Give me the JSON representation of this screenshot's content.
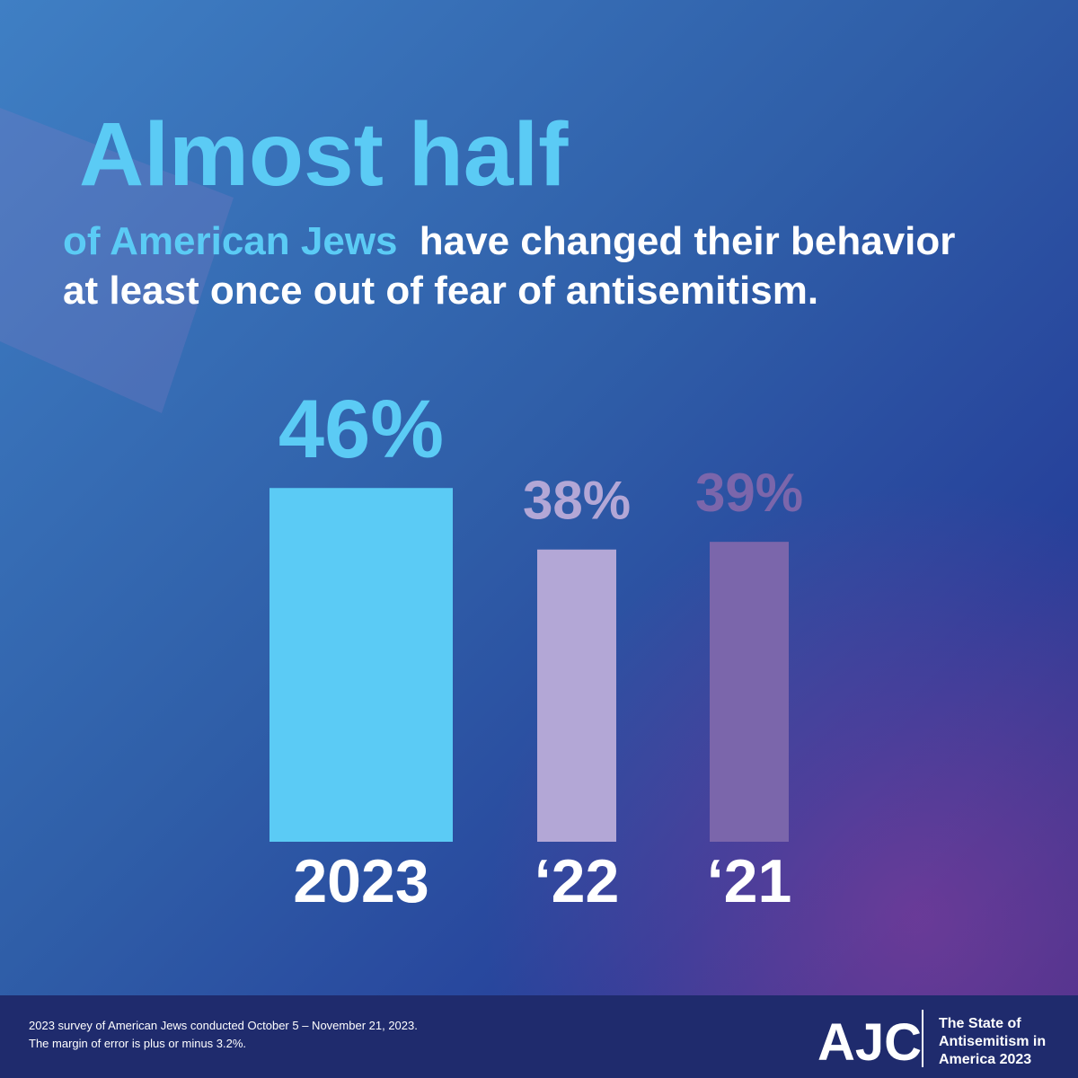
{
  "chart_data": {
    "type": "bar",
    "title": "Almost half",
    "subtitle_highlight": "of American Jews",
    "subtitle_lines": [
      "have changed their behavior",
      "at least once out of fear of antisemitism."
    ],
    "categories": [
      "2023",
      "‘22",
      "‘21"
    ],
    "values": [
      46,
      38,
      39
    ],
    "value_labels": [
      "46%",
      "38%",
      "39%"
    ],
    "colors": [
      "#5bcbf5",
      "#b3a7d6",
      "#7b66ab"
    ]
  },
  "footer": {
    "note_lines": [
      "2023 survey of American Jews conducted October 5 – November 21, 2023.",
      "The margin of error is plus or minus 3.2%."
    ],
    "logo": "AJC",
    "report_lines": [
      "The State of",
      "Antisemitism in",
      "America 2023"
    ]
  }
}
